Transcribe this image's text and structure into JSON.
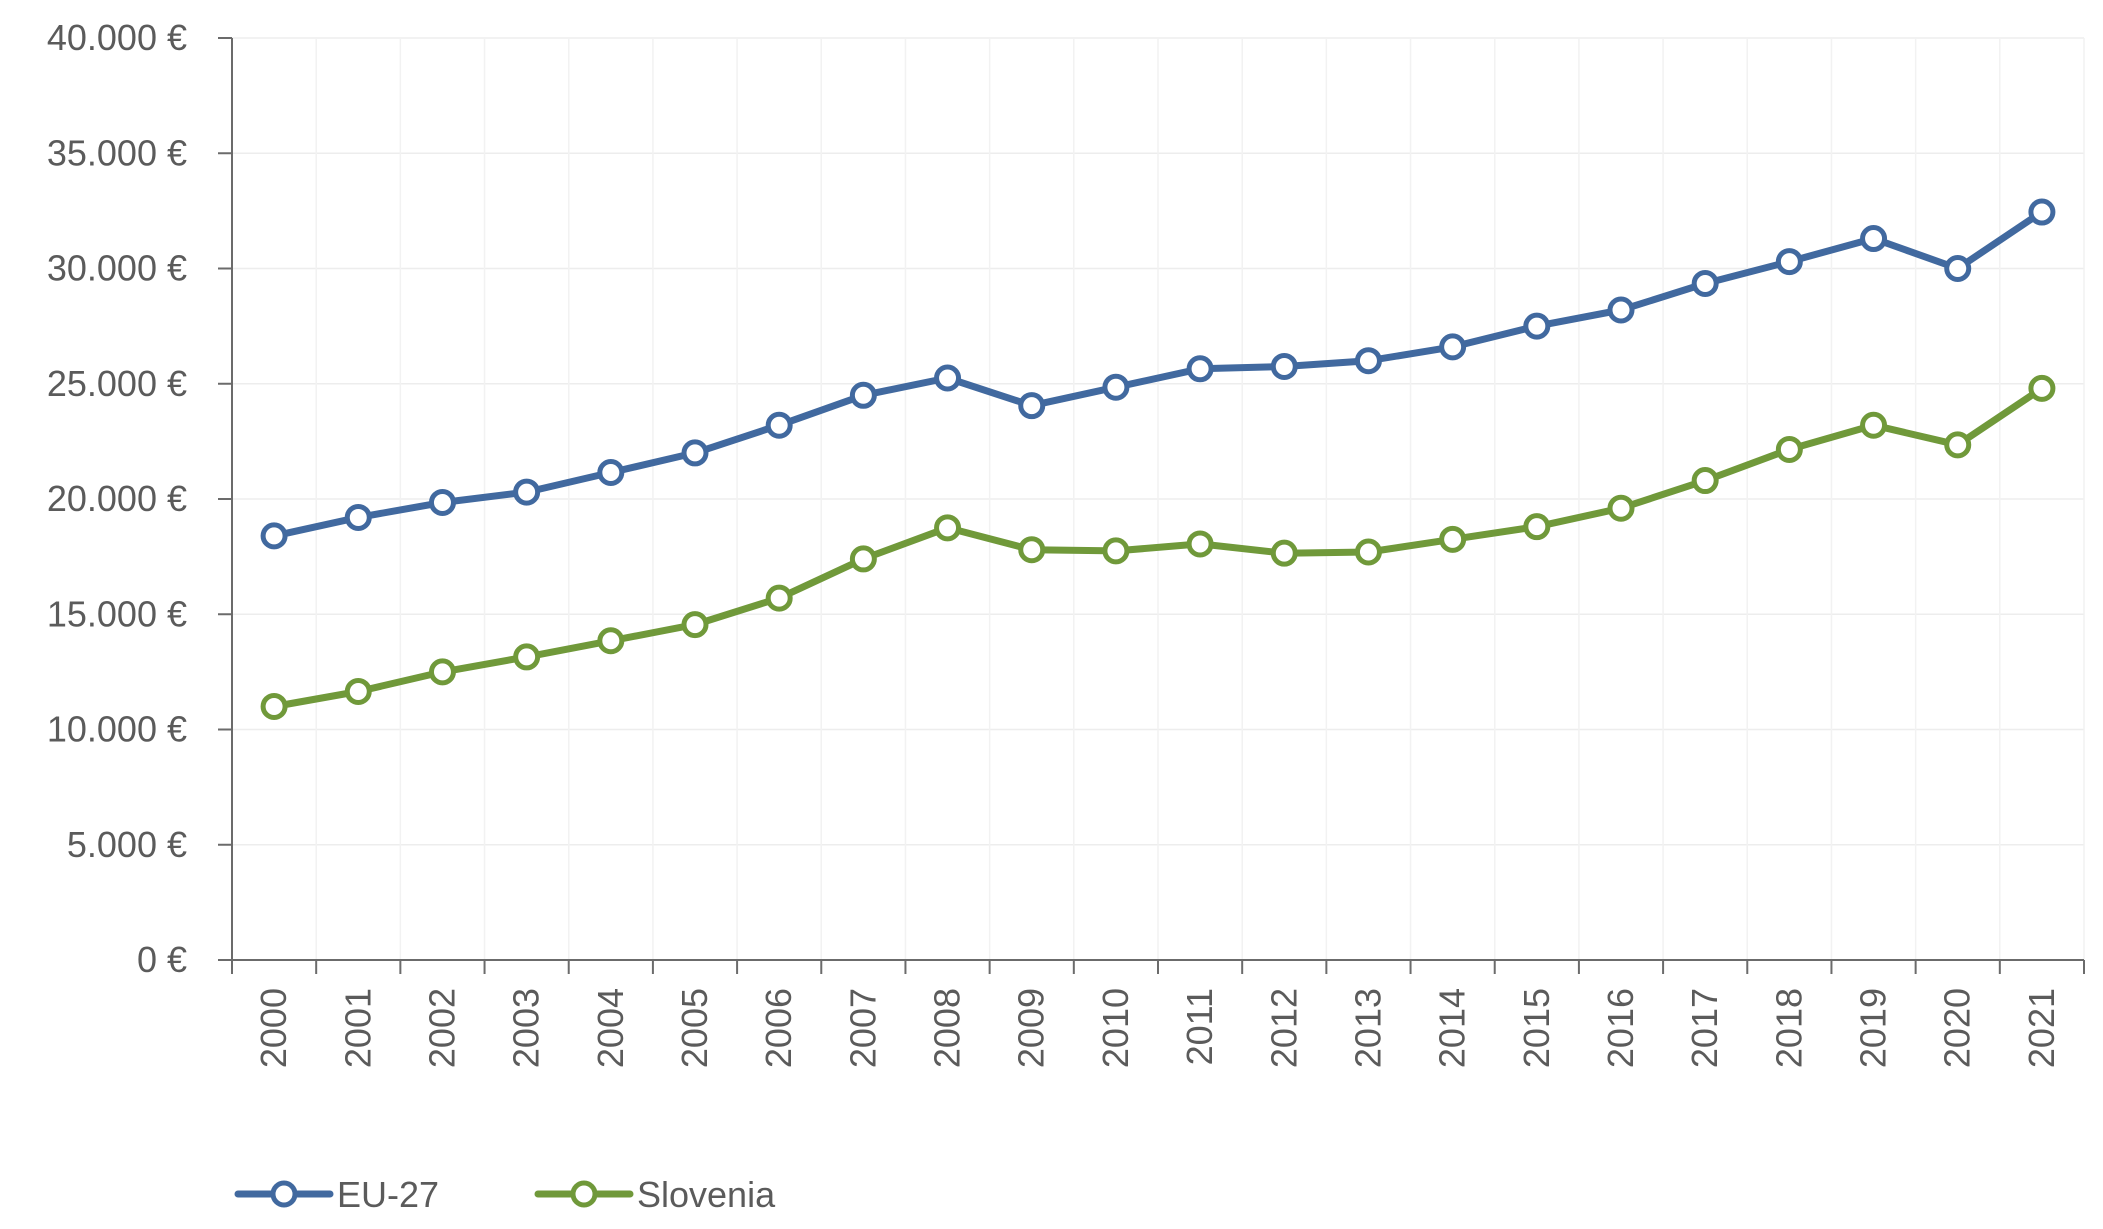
{
  "chart_data": {
    "type": "line",
    "title": "",
    "xlabel": "",
    "ylabel": "",
    "categories": [
      "2000",
      "2001",
      "2002",
      "2003",
      "2004",
      "2005",
      "2006",
      "2007",
      "2008",
      "2009",
      "2010",
      "2011",
      "2012",
      "2013",
      "2014",
      "2015",
      "2016",
      "2017",
      "2018",
      "2019",
      "2020",
      "2021"
    ],
    "ylim": [
      0,
      40000
    ],
    "y_ticks": [
      0,
      5000,
      10000,
      15000,
      20000,
      25000,
      30000,
      35000,
      40000
    ],
    "y_tick_labels": [
      "0 €",
      "5.000 €",
      "10.000 €",
      "15.000 €",
      "20.000 €",
      "25.000 €",
      "30.000 €",
      "35.000 €",
      "40.000 €"
    ],
    "grid": true,
    "legend_position": "bottom-left",
    "series": [
      {
        "name": "EU-27",
        "color": "#41699f",
        "values": [
          18400,
          19200,
          19850,
          20300,
          21150,
          22000,
          23200,
          24500,
          25250,
          24050,
          24850,
          25650,
          25750,
          26000,
          26600,
          27500,
          28200,
          29350,
          30300,
          31300,
          30000,
          32450
        ]
      },
      {
        "name": "Slovenia",
        "color": "#70993a",
        "values": [
          11000,
          11650,
          12500,
          13150,
          13850,
          14550,
          15700,
          17400,
          18750,
          17800,
          17750,
          18050,
          17650,
          17700,
          18250,
          18800,
          19600,
          20800,
          22150,
          23200,
          22350,
          24800
        ]
      }
    ]
  }
}
